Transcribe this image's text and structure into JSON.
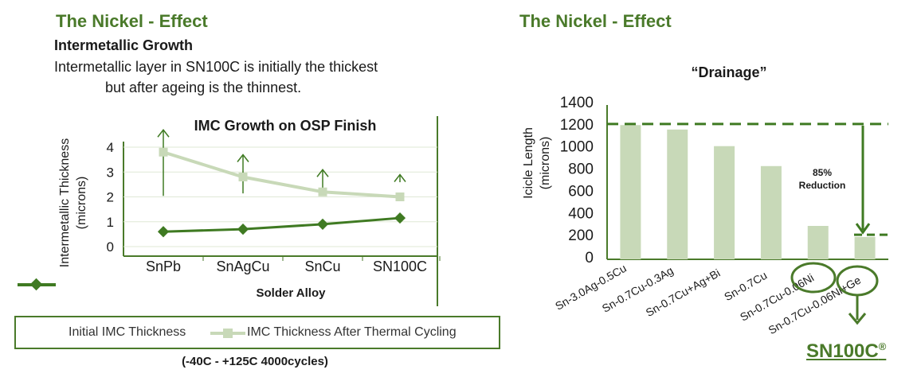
{
  "left": {
    "title": "The Nickel - Effect",
    "subtitle": "Intermetallic Growth",
    "description": [
      "Intermetallic layer in SN100C is initially the thickest",
      "but after ageing is the thinnest."
    ],
    "condition": "(-40C - +125C 4000cycles)"
  },
  "right": {
    "title": "The Nickel - Effect",
    "brand": "SN100C",
    "brand_mark": "®"
  },
  "chart_data": [
    {
      "type": "line",
      "title": "IMC Growth on OSP Finish",
      "xlabel": "Solder Alloy",
      "ylabel": "Intermetallic Thickness\n(microns)",
      "categories": [
        "SnPb",
        "SnAgCu",
        "SnCu",
        "SN100C"
      ],
      "ylim": [
        0,
        4
      ],
      "yticks": [
        0,
        1,
        2,
        3,
        4
      ],
      "series": [
        {
          "name": "Initial IMC Thickness",
          "values": [
            0.6,
            0.7,
            0.9,
            1.15
          ],
          "color": "#3f7a22",
          "marker": "diamond"
        },
        {
          "name": "IMC Thickness After Thermal Cycling",
          "values": [
            3.8,
            2.8,
            2.2,
            2.0
          ],
          "color": "#c8d9b8",
          "marker": "square"
        }
      ],
      "legend": "bottom"
    },
    {
      "type": "bar",
      "title": "“Drainage”",
      "ylabel": "Icicle Length\n(microns)",
      "categories": [
        "Sn-3.0Ag-0.5Cu",
        "Sn-0.7Cu-0.3Ag",
        "Sn-0.7Cu+Ag+Bi",
        "Sn-0.7Cu",
        "Sn-0.7Cu-0.06Ni",
        "Sn-0.7Cu-0.06Ni+Ge"
      ],
      "values": [
        1190,
        1150,
        1000,
        820,
        280,
        180
      ],
      "ylim": [
        0,
        1400
      ],
      "yticks": [
        0,
        200,
        400,
        600,
        800,
        1000,
        1200,
        1400
      ],
      "color": "#c8d9b8",
      "reference_lines": [
        1200,
        200
      ],
      "annotation": "85%\nReduction"
    }
  ]
}
